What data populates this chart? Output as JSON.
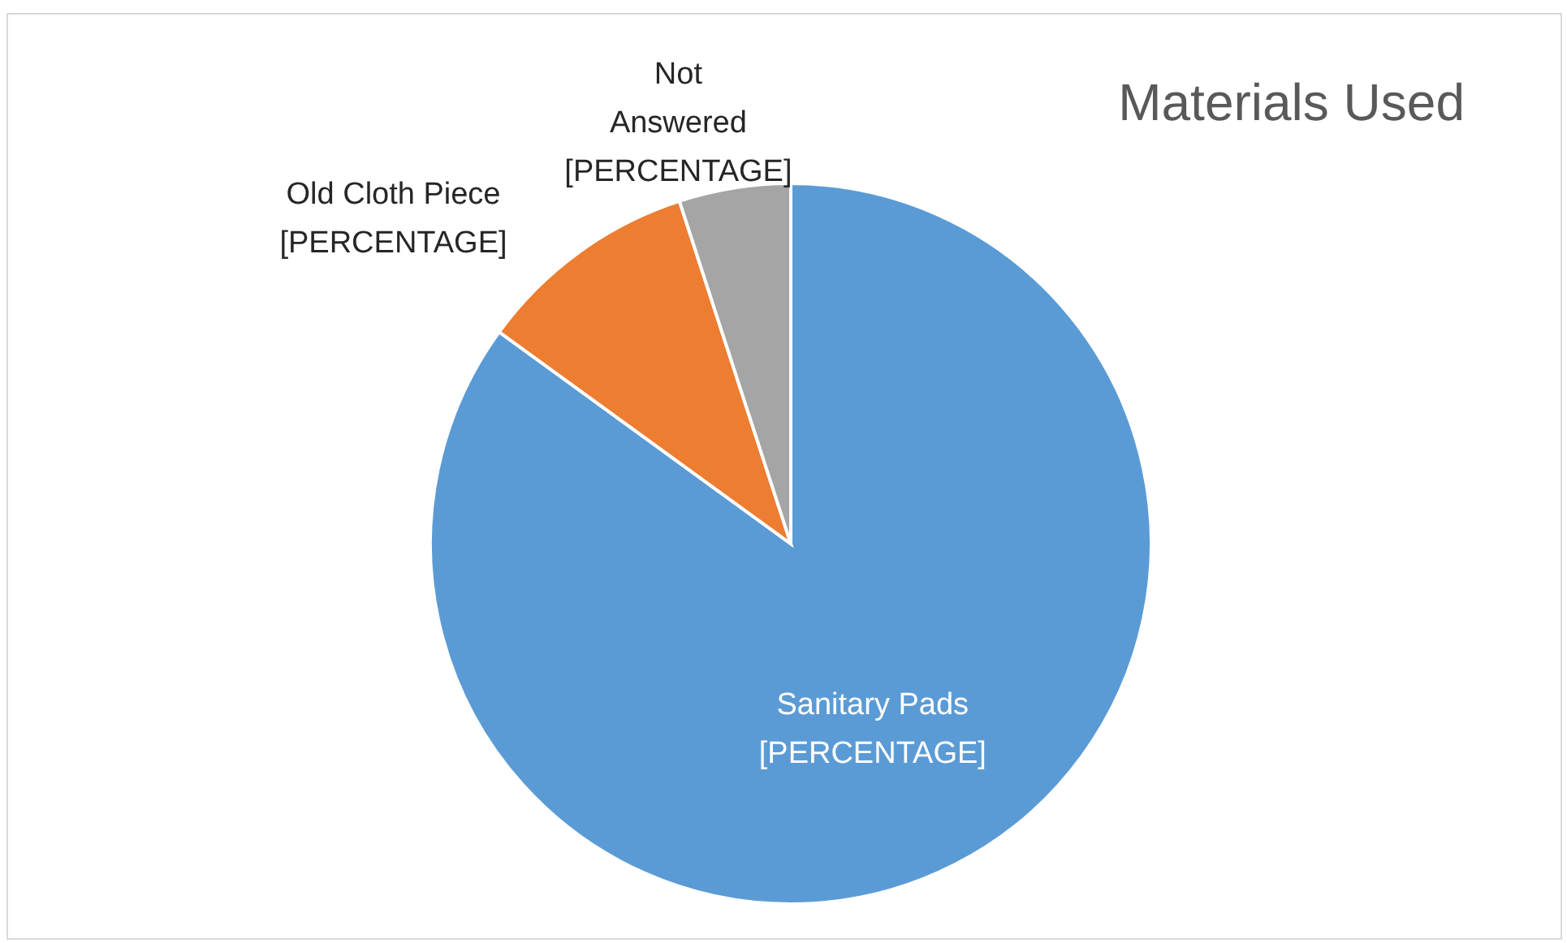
{
  "chart_data": {
    "type": "pie",
    "title": "Materials Used",
    "categories": [
      "Sanitary Pads",
      "Old Cloth Piece",
      "Not Answered"
    ],
    "values": [
      85,
      10,
      5
    ],
    "colors": [
      "#5b9bd5",
      "#ed7d31",
      "#a5a5a5"
    ],
    "value_labels": [
      "[PERCENTAGE]",
      "[PERCENTAGE]",
      "[PERCENTAGE]"
    ]
  }
}
